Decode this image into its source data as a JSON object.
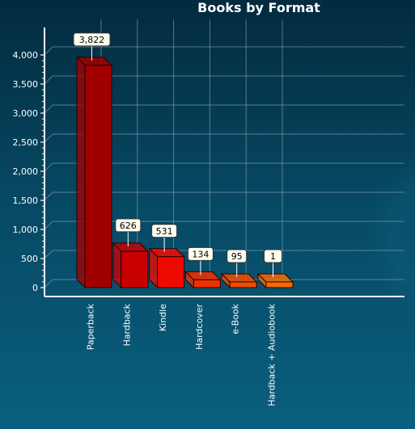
{
  "chart_data": {
    "type": "bar",
    "title": "Books by Format",
    "categories": [
      "Paperback",
      "Hardback",
      "Kindle",
      "Hardcover",
      "e-Book",
      "Hardback + Audiobook"
    ],
    "values": [
      3822,
      626,
      531,
      134,
      95,
      1
    ],
    "value_labels": [
      "3,822",
      "626",
      "531",
      "134",
      "95",
      "1"
    ],
    "yticks": [
      0,
      500,
      1000,
      1500,
      2000,
      2500,
      3000,
      3500,
      4000
    ],
    "ytick_labels": [
      "0",
      "500",
      "1,000",
      "1,500",
      "2,000",
      "2,500",
      "3,000",
      "3,500",
      "4,000"
    ],
    "ylim": [
      0,
      4000
    ],
    "grid": true,
    "colors": [
      "#a00000",
      "#c80000",
      "#ee0a00",
      "#f03000",
      "#f04d00",
      "#f26c00"
    ]
  }
}
